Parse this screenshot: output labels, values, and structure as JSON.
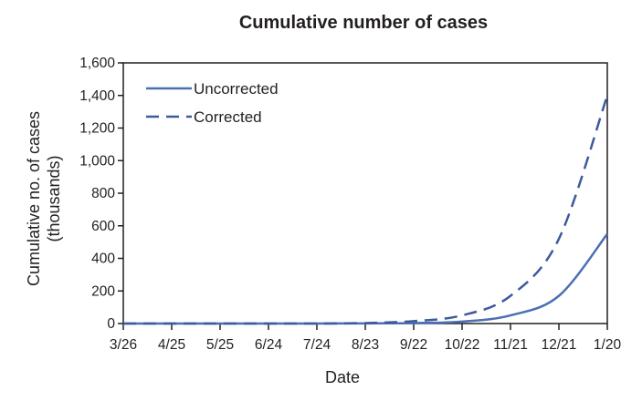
{
  "chart_data": {
    "type": "line",
    "title": "Cumulative number of cases",
    "xlabel": "Date",
    "ylabel_lines": [
      "Cumulative no. of cases",
      "(thousands)"
    ],
    "x_ticks": [
      "3/26",
      "4/25",
      "5/25",
      "6/24",
      "7/24",
      "8/23",
      "9/22",
      "10/22",
      "11/21",
      "12/21",
      "1/20"
    ],
    "y_ticks": [
      "0",
      "200",
      "400",
      "600",
      "800",
      "1,000",
      "1,200",
      "1,400",
      "1,600"
    ],
    "ylim": [
      0,
      1600
    ],
    "legend_position": "top-left",
    "x": [
      "3/26",
      "4/25",
      "5/25",
      "6/24",
      "7/24",
      "8/23",
      "9/22",
      "10/22",
      "11/21",
      "12/21",
      "1/20"
    ],
    "series": [
      {
        "name": "Uncorrected",
        "style": "solid",
        "color": "#4a6fb5",
        "values": [
          0,
          0,
          0,
          0,
          0,
          1,
          3,
          12,
          50,
          170,
          550
        ]
      },
      {
        "name": "Corrected",
        "style": "dashed",
        "color": "#3d5a9c",
        "values": [
          0,
          0,
          0,
          0,
          0,
          3,
          15,
          50,
          170,
          520,
          1400
        ]
      }
    ]
  }
}
